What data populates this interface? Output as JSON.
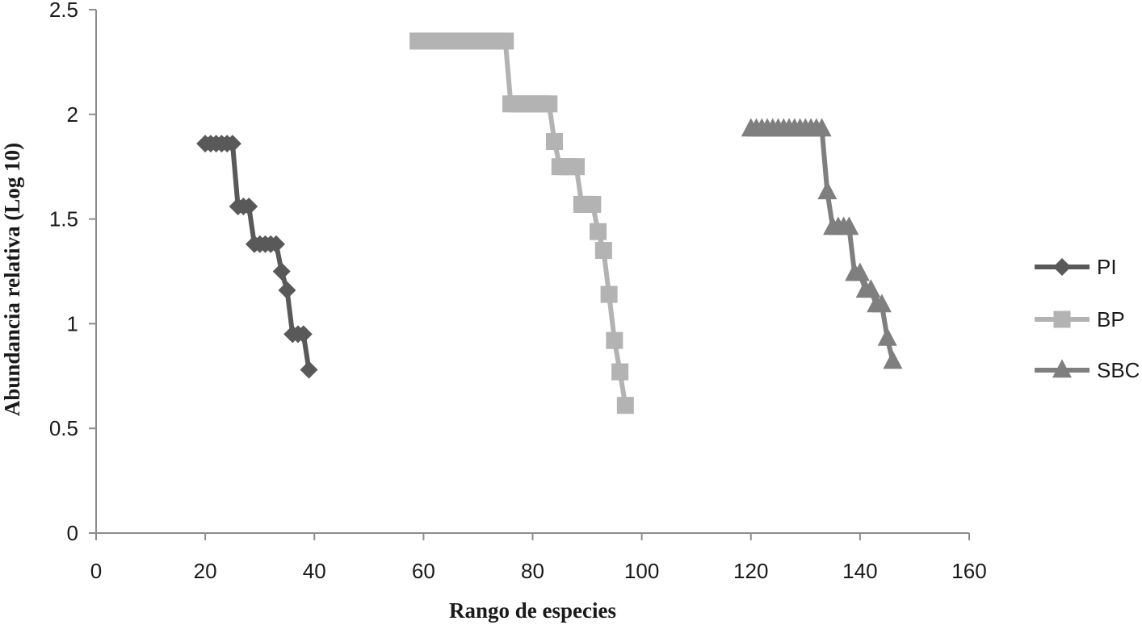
{
  "chart_data": {
    "type": "line",
    "title": "",
    "xlabel": "Rango de especies",
    "ylabel": "Abundancia relativa (Log 10)",
    "xlim": [
      0,
      160
    ],
    "ylim": [
      0,
      2.5
    ],
    "x_ticks": [
      0,
      20,
      40,
      60,
      80,
      100,
      120,
      140,
      160
    ],
    "y_ticks": [
      0,
      0.5,
      1,
      1.5,
      2,
      2.5
    ],
    "x_tick_labels": [
      "0",
      "20",
      "40",
      "60",
      "80",
      "100",
      "120",
      "140",
      "160"
    ],
    "y_tick_labels": [
      "0",
      "0.5",
      "1",
      "1.5",
      "2",
      "2.5"
    ],
    "grid": false,
    "legend_position": "right",
    "series": [
      {
        "name": "PI",
        "marker": "diamond",
        "color": "#595959",
        "points": [
          [
            20,
            1.86
          ],
          [
            21,
            1.86
          ],
          [
            22,
            1.86
          ],
          [
            23,
            1.86
          ],
          [
            24,
            1.86
          ],
          [
            25,
            1.86
          ],
          [
            26,
            1.56
          ],
          [
            27,
            1.56
          ],
          [
            28,
            1.56
          ],
          [
            29,
            1.38
          ],
          [
            30,
            1.38
          ],
          [
            31,
            1.38
          ],
          [
            32,
            1.38
          ],
          [
            33,
            1.38
          ],
          [
            34,
            1.25
          ],
          [
            35,
            1.16
          ],
          [
            36,
            0.95
          ],
          [
            37,
            0.95
          ],
          [
            38,
            0.95
          ],
          [
            39,
            0.78
          ]
        ]
      },
      {
        "name": "BP",
        "marker": "square",
        "color": "#b3b3b3",
        "points": [
          [
            59,
            2.35
          ],
          [
            60,
            2.35
          ],
          [
            61,
            2.35
          ],
          [
            62,
            2.35
          ],
          [
            63,
            2.35
          ],
          [
            64,
            2.35
          ],
          [
            65,
            2.35
          ],
          [
            66,
            2.35
          ],
          [
            67,
            2.35
          ],
          [
            68,
            2.35
          ],
          [
            69,
            2.35
          ],
          [
            70,
            2.35
          ],
          [
            71,
            2.35
          ],
          [
            72,
            2.35
          ],
          [
            73,
            2.35
          ],
          [
            74,
            2.35
          ],
          [
            75,
            2.35
          ],
          [
            76,
            2.05
          ],
          [
            77,
            2.05
          ],
          [
            78,
            2.05
          ],
          [
            79,
            2.05
          ],
          [
            80,
            2.05
          ],
          [
            81,
            2.05
          ],
          [
            82,
            2.05
          ],
          [
            83,
            2.05
          ],
          [
            84,
            1.87
          ],
          [
            85,
            1.75
          ],
          [
            86,
            1.75
          ],
          [
            87,
            1.75
          ],
          [
            88,
            1.75
          ],
          [
            89,
            1.57
          ],
          [
            90,
            1.57
          ],
          [
            91,
            1.57
          ],
          [
            92,
            1.44
          ],
          [
            93,
            1.35
          ],
          [
            94,
            1.14
          ],
          [
            95,
            0.92
          ],
          [
            96,
            0.77
          ],
          [
            97,
            0.61
          ]
        ]
      },
      {
        "name": "SBC",
        "marker": "triangle",
        "color": "#7f7f7f",
        "points": [
          [
            120,
            1.93
          ],
          [
            121,
            1.93
          ],
          [
            122,
            1.93
          ],
          [
            123,
            1.93
          ],
          [
            124,
            1.93
          ],
          [
            125,
            1.93
          ],
          [
            126,
            1.93
          ],
          [
            127,
            1.93
          ],
          [
            128,
            1.93
          ],
          [
            129,
            1.93
          ],
          [
            130,
            1.93
          ],
          [
            131,
            1.93
          ],
          [
            132,
            1.93
          ],
          [
            133,
            1.93
          ],
          [
            134,
            1.63
          ],
          [
            135,
            1.46
          ],
          [
            136,
            1.46
          ],
          [
            137,
            1.46
          ],
          [
            138,
            1.46
          ],
          [
            139,
            1.24
          ],
          [
            140,
            1.24
          ],
          [
            141,
            1.16
          ],
          [
            142,
            1.16
          ],
          [
            143,
            1.09
          ],
          [
            144,
            1.09
          ],
          [
            145,
            0.93
          ],
          [
            146,
            0.82
          ]
        ]
      }
    ]
  }
}
